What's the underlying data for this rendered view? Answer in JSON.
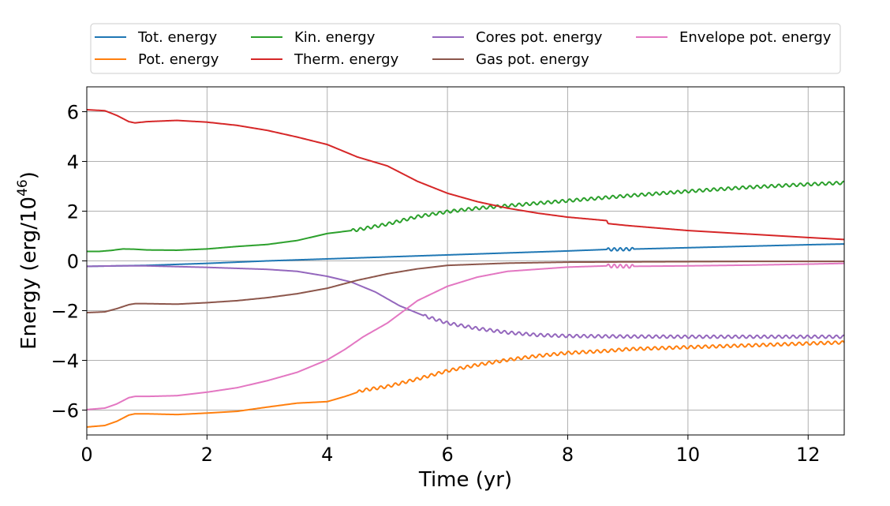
{
  "chart_data": {
    "type": "line",
    "title": "",
    "xlabel": "Time (yr)",
    "ylabel": "Energy (erg/10^46)",
    "ylabel_base": "Energy (erg/10",
    "ylabel_exp": "46",
    "ylabel_close": ")",
    "xlim": [
      0,
      12.6
    ],
    "ylim": [
      -7,
      7
    ],
    "xticks": [
      0,
      2,
      4,
      6,
      8,
      10,
      12
    ],
    "yticks": [
      -6,
      -4,
      -2,
      0,
      2,
      4,
      6
    ],
    "grid": true,
    "legend_position": "top, outside plot, 4 columns",
    "series": [
      {
        "name": "Tot. energy",
        "color": "#1f77b4",
        "x": [
          0,
          1,
          2,
          3,
          4,
          5,
          6,
          7,
          8,
          8.65,
          9,
          10,
          11,
          12,
          12.6
        ],
        "y": [
          -0.22,
          -0.18,
          -0.1,
          0.0,
          0.08,
          0.16,
          0.24,
          0.32,
          0.4,
          0.46,
          0.47,
          0.53,
          0.59,
          0.65,
          0.68
        ],
        "osc": {
          "start": 8.65,
          "end": 9.1,
          "amp": 0.06,
          "period": 0.1
        }
      },
      {
        "name": "Pot. energy",
        "color": "#ff7f0e",
        "x": [
          0,
          0.3,
          0.5,
          0.7,
          0.8,
          1.0,
          1.5,
          2,
          2.5,
          3,
          3.5,
          4,
          4.3,
          4.6,
          5,
          5.5,
          6,
          6.5,
          7,
          7.5,
          8,
          8.65,
          9,
          10,
          11,
          12,
          12.6
        ],
        "y": [
          -6.68,
          -6.62,
          -6.45,
          -6.2,
          -6.15,
          -6.15,
          -6.18,
          -6.12,
          -6.05,
          -5.88,
          -5.72,
          -5.66,
          -5.45,
          -5.2,
          -5.05,
          -4.75,
          -4.42,
          -4.18,
          -3.98,
          -3.82,
          -3.7,
          -3.62,
          -3.55,
          -3.47,
          -3.4,
          -3.32,
          -3.28
        ],
        "osc": {
          "start": 4.5,
          "end": 12.6,
          "amp": 0.06,
          "period": 0.12
        }
      },
      {
        "name": "Kin. energy",
        "color": "#2ca02c",
        "x": [
          0,
          0.2,
          0.4,
          0.6,
          0.8,
          1,
          1.5,
          2,
          2.5,
          3,
          3.5,
          4,
          4.5,
          5,
          5.5,
          6,
          6.5,
          7,
          7.5,
          8,
          8.5,
          9,
          10,
          11,
          12,
          12.6
        ],
        "y": [
          0.38,
          0.38,
          0.42,
          0.48,
          0.47,
          0.44,
          0.43,
          0.48,
          0.58,
          0.66,
          0.82,
          1.1,
          1.25,
          1.48,
          1.78,
          1.98,
          2.12,
          2.22,
          2.32,
          2.42,
          2.52,
          2.62,
          2.8,
          2.96,
          3.08,
          3.14
        ],
        "osc": {
          "start": 4.4,
          "end": 12.6,
          "amp": 0.06,
          "period": 0.12
        }
      },
      {
        "name": "Therm. energy",
        "color": "#d62728",
        "x": [
          0,
          0.3,
          0.5,
          0.7,
          0.8,
          1.0,
          1.5,
          2,
          2.5,
          3,
          3.5,
          4,
          4.5,
          5,
          5.5,
          6,
          6.5,
          7,
          7.5,
          8,
          8.65,
          8.67,
          9,
          10,
          11,
          12,
          12.6
        ],
        "y": [
          6.08,
          6.04,
          5.85,
          5.6,
          5.55,
          5.6,
          5.65,
          5.58,
          5.45,
          5.25,
          4.98,
          4.68,
          4.18,
          3.82,
          3.2,
          2.72,
          2.38,
          2.12,
          1.92,
          1.76,
          1.62,
          1.5,
          1.42,
          1.22,
          1.08,
          0.94,
          0.86
        ]
      },
      {
        "name": "Cores pot. energy",
        "color": "#9467bd",
        "x": [
          0,
          0.5,
          1,
          2,
          3,
          3.5,
          4,
          4.4,
          4.8,
          5.2,
          5.6,
          6,
          6.5,
          7,
          7.5,
          8,
          9,
          10,
          11,
          12,
          12.6
        ],
        "y": [
          -0.22,
          -0.2,
          -0.2,
          -0.26,
          -0.34,
          -0.42,
          -0.62,
          -0.85,
          -1.25,
          -1.8,
          -2.2,
          -2.5,
          -2.72,
          -2.88,
          -2.98,
          -3.02,
          -3.04,
          -3.05,
          -3.05,
          -3.05,
          -3.05
        ],
        "osc": {
          "start": 5.6,
          "end": 12.6,
          "amp": 0.06,
          "period": 0.12
        }
      },
      {
        "name": "Gas pot. energy",
        "color": "#8c564b",
        "x": [
          0,
          0.3,
          0.5,
          0.7,
          0.8,
          1.0,
          1.5,
          2,
          2.5,
          3,
          3.5,
          4,
          4.5,
          5,
          5.5,
          6,
          7,
          8,
          9,
          10,
          11,
          12,
          12.6
        ],
        "y": [
          -2.08,
          -2.05,
          -1.92,
          -1.76,
          -1.72,
          -1.72,
          -1.74,
          -1.68,
          -1.6,
          -1.48,
          -1.32,
          -1.1,
          -0.78,
          -0.52,
          -0.32,
          -0.18,
          -0.09,
          -0.05,
          -0.04,
          -0.03,
          -0.02,
          -0.02,
          -0.02
        ]
      },
      {
        "name": "Envelope pot. energy",
        "color": "#e377c2",
        "x": [
          0,
          0.3,
          0.5,
          0.7,
          0.8,
          1.0,
          1.5,
          2,
          2.5,
          3,
          3.5,
          4,
          4.3,
          4.6,
          5,
          5.5,
          6,
          6.5,
          7,
          8,
          8.65,
          9,
          10,
          11,
          12,
          12.6
        ],
        "y": [
          -5.98,
          -5.92,
          -5.75,
          -5.5,
          -5.45,
          -5.45,
          -5.42,
          -5.28,
          -5.1,
          -4.82,
          -4.48,
          -3.98,
          -3.55,
          -3.05,
          -2.5,
          -1.6,
          -1.02,
          -0.65,
          -0.42,
          -0.25,
          -0.2,
          -0.22,
          -0.2,
          -0.17,
          -0.13,
          -0.1
        ],
        "osc": {
          "start": 8.65,
          "end": 9.1,
          "amp": 0.07,
          "period": 0.1
        }
      }
    ]
  }
}
